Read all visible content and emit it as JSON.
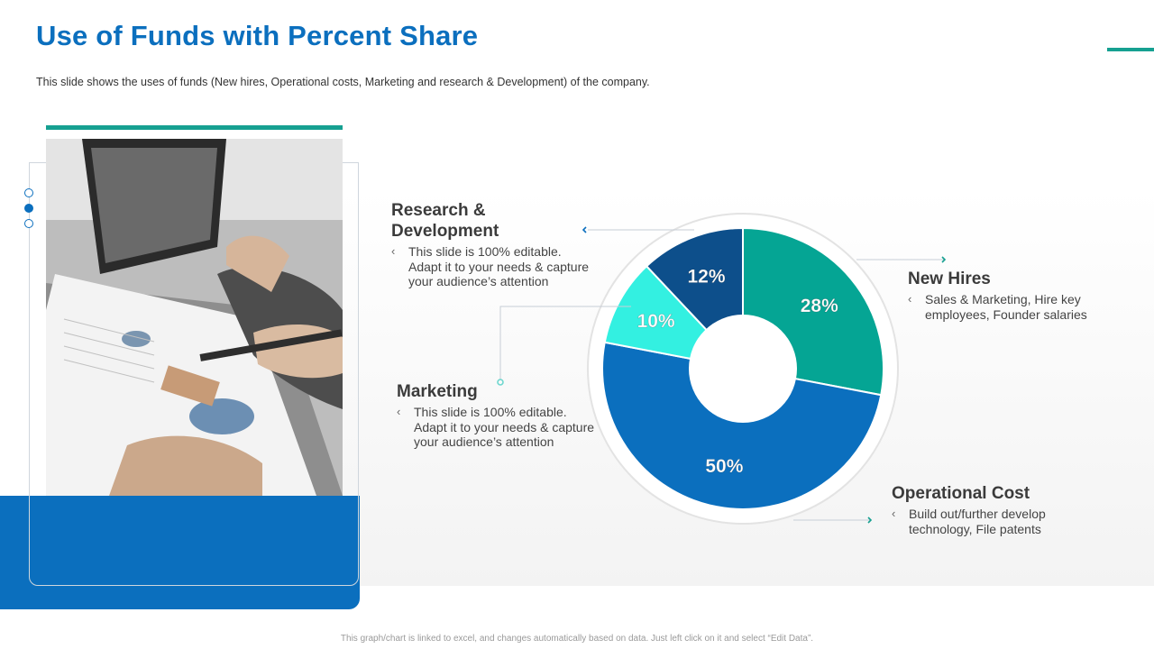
{
  "title": "Use of Funds with Percent Share",
  "subtitle": "This slide shows the uses of funds (New hires, Operational  costs, Marketing and research & Development)  of the company.",
  "colors": {
    "brand_blue": "#0b6fbe",
    "teal": "#16a091",
    "new_hires": "#05a594",
    "operational": "#0b6fbe",
    "marketing": "#33f0e1",
    "research": "#0d4f8b"
  },
  "nav_dots": [
    "dot-1",
    "dot-2-active",
    "dot-3"
  ],
  "photo": {
    "icon": "business-analysis-photo"
  },
  "chart_data": {
    "type": "pie",
    "style": "donut",
    "start_angle_deg": 0,
    "direction": "clockwise",
    "slices": [
      {
        "name": "New Hires",
        "value": 28,
        "label": "28%",
        "color": "#05a594"
      },
      {
        "name": "Operational Cost",
        "value": 50,
        "label": "50%",
        "color": "#0b6fbe"
      },
      {
        "name": "Marketing",
        "value": 10,
        "label": "10%",
        "color": "#33f0e1"
      },
      {
        "name": "Research & Development",
        "value": 12,
        "label": "12%",
        "color": "#0d4f8b"
      }
    ]
  },
  "blocks": {
    "research": {
      "head_line1": "Research &",
      "head_line2": "Development",
      "bullet": "‹",
      "desc_lines": [
        "This slide is 100% editable.",
        "Adapt it to your needs & capture",
        "your audience’s attention"
      ]
    },
    "marketing": {
      "head": "Marketing",
      "bullet": "‹",
      "desc_lines": [
        "This slide is 100% editable.",
        "Adapt it to your needs & capture",
        "your audience’s attention"
      ]
    },
    "new_hires": {
      "head": "New Hires",
      "bullet": "‹",
      "desc_lines": [
        "Sales & Marketing, Hire key",
        "employees, Founder salaries"
      ]
    },
    "operational": {
      "head": "Operational Cost",
      "bullet": "‹",
      "desc_lines": [
        "Build out/further develop",
        "technology, File patents"
      ]
    }
  },
  "footer": "This graph/chart is linked to excel, and changes automatically based on data. Just left click on it and select “Edit Data”."
}
